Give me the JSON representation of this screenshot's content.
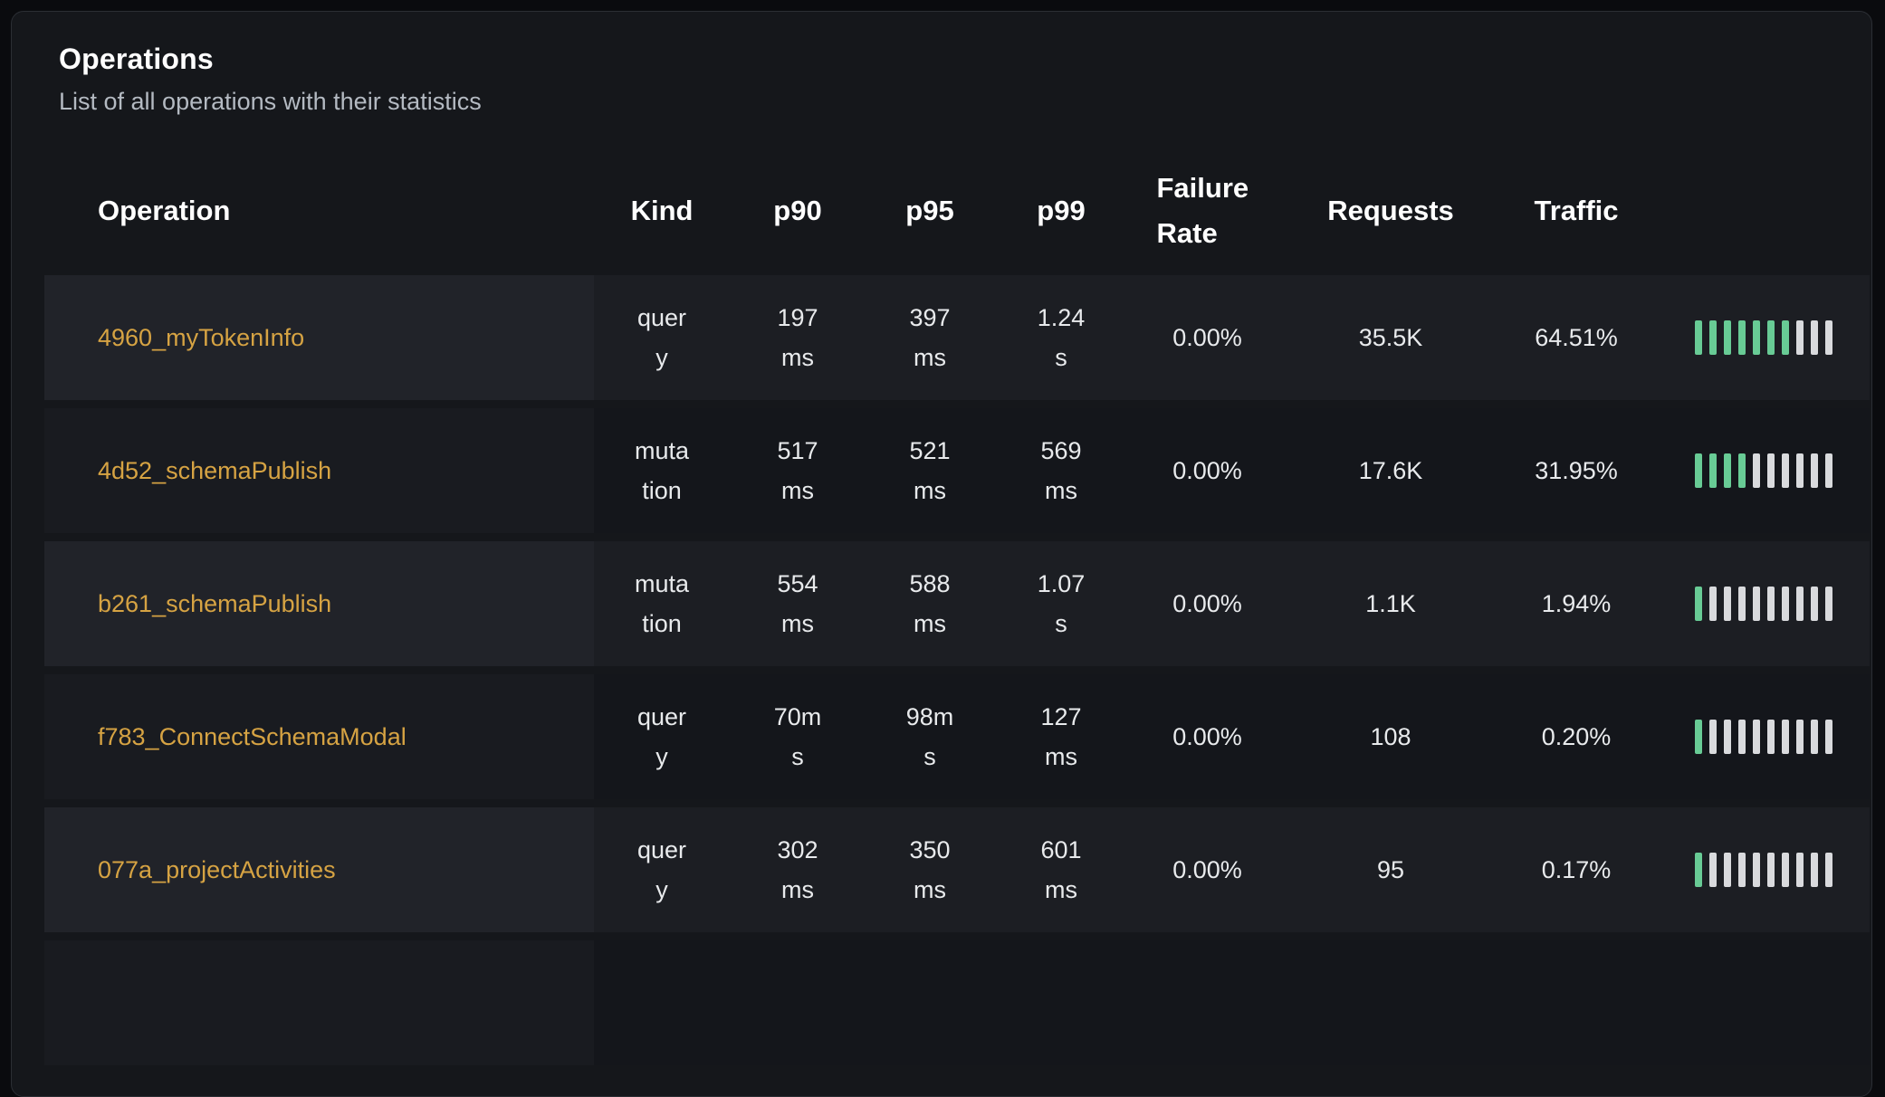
{
  "card": {
    "title": "Operations",
    "subtitle": "List of all operations with their statistics"
  },
  "table": {
    "columns": [
      {
        "key": "operation",
        "label": "Operation"
      },
      {
        "key": "kind",
        "label": "Kind"
      },
      {
        "key": "p90",
        "label": "p90"
      },
      {
        "key": "p95",
        "label": "p95"
      },
      {
        "key": "p99",
        "label": "p99"
      },
      {
        "key": "failure_rate",
        "label": "Failure Rate"
      },
      {
        "key": "requests",
        "label": "Requests"
      },
      {
        "key": "traffic",
        "label": "Traffic"
      },
      {
        "key": "traffic_bar",
        "label": ""
      }
    ],
    "rows": [
      {
        "operation": "4960_myTokenInfo",
        "kind": "query",
        "p90": "197ms",
        "p95": "397ms",
        "p99": "1.24s",
        "failure_rate": "0.00%",
        "requests": "35.5K",
        "traffic": "64.51%",
        "traffic_bar": {
          "total_segments": 10,
          "filled_segments": 7
        }
      },
      {
        "operation": "4d52_schemaPublish",
        "kind": "mutation",
        "p90": "517ms",
        "p95": "521ms",
        "p99": "569ms",
        "failure_rate": "0.00%",
        "requests": "17.6K",
        "traffic": "31.95%",
        "traffic_bar": {
          "total_segments": 10,
          "filled_segments": 4
        }
      },
      {
        "operation": "b261_schemaPublish",
        "kind": "mutation",
        "p90": "554ms",
        "p95": "588ms",
        "p99": "1.07s",
        "failure_rate": "0.00%",
        "requests": "1.1K",
        "traffic": "1.94%",
        "traffic_bar": {
          "total_segments": 10,
          "filled_segments": 1
        }
      },
      {
        "operation": "f783_ConnectSchemaModal",
        "kind": "query",
        "p90": "70ms",
        "p95": "98ms",
        "p99": "127ms",
        "failure_rate": "0.00%",
        "requests": "108",
        "traffic": "0.20%",
        "traffic_bar": {
          "total_segments": 10,
          "filled_segments": 1
        }
      },
      {
        "operation": "077a_projectActivities",
        "kind": "query",
        "p90": "302ms",
        "p95": "350ms",
        "p99": "601ms",
        "failure_rate": "0.00%",
        "requests": "95",
        "traffic": "0.17%",
        "traffic_bar": {
          "total_segments": 10,
          "filled_segments": 1
        }
      }
    ]
  },
  "colors": {
    "link": "#d6a343",
    "bar_filled": "#68cb95",
    "bar_empty": "#d9dadd",
    "card_background": "#15171b",
    "page_background": "#0a0b0e"
  }
}
